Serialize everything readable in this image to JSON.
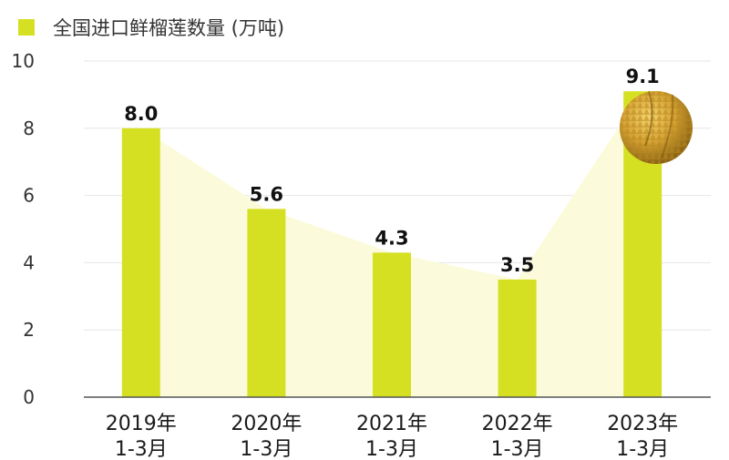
{
  "chart_data": {
    "type": "bar",
    "legend": {
      "label": "全国进口鲜榴莲数量 (万吨)",
      "position": "top-left"
    },
    "categories": [
      [
        "2019年",
        "1-3月"
      ],
      [
        "2020年",
        "1-3月"
      ],
      [
        "2021年",
        "1-3月"
      ],
      [
        "2022年",
        "1-3月"
      ],
      [
        "2023年",
        "1-3月"
      ]
    ],
    "values": [
      8.0,
      5.6,
      4.3,
      3.5,
      9.1
    ],
    "value_labels": [
      "8.0",
      "5.6",
      "4.3",
      "3.5",
      "9.1"
    ],
    "ylim": [
      0,
      10
    ],
    "yticks": [
      0,
      2,
      4,
      6,
      8,
      10
    ],
    "grid": true,
    "colors": {
      "bar": "#d6e022",
      "area": "#fbfbdc",
      "grid": "#e6e6e6",
      "axis": "#555555"
    },
    "decoration_icon": "durian-icon"
  }
}
